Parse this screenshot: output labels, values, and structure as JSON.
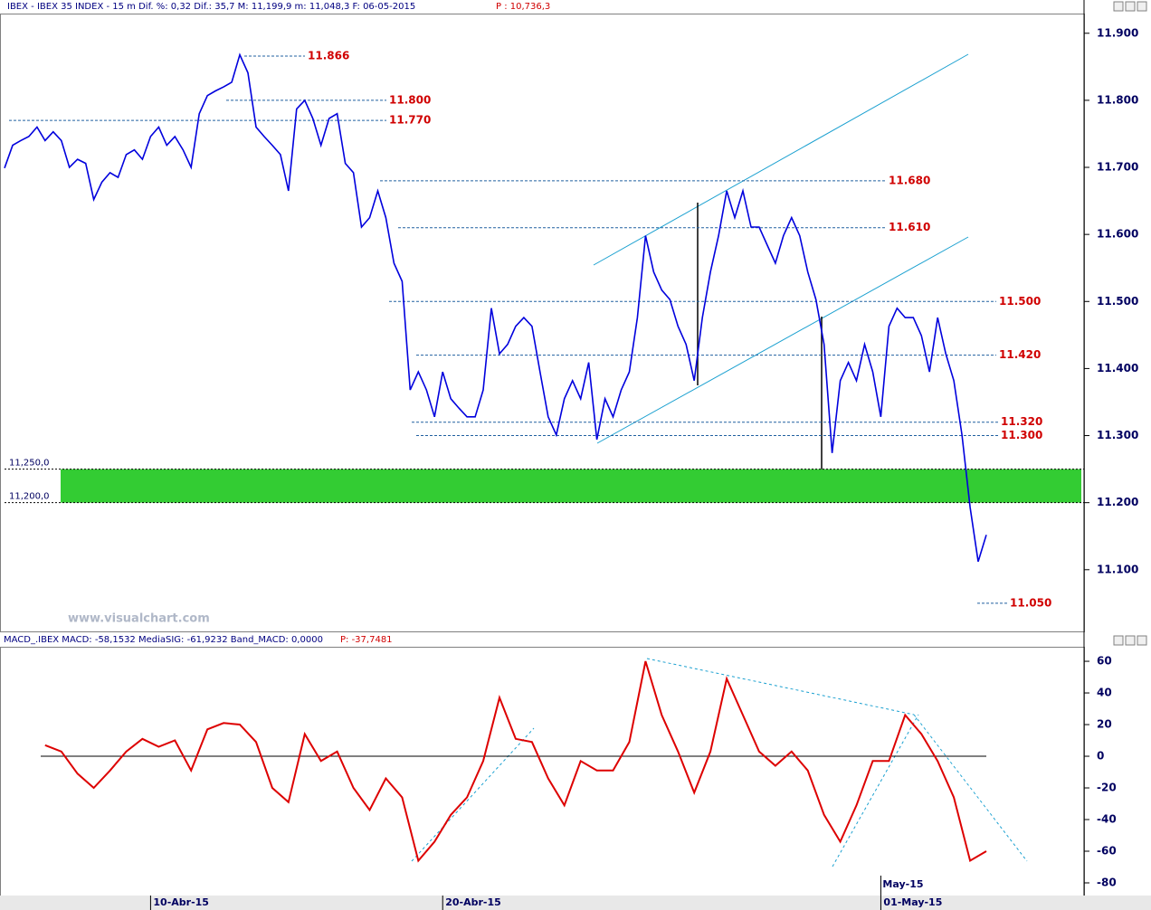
{
  "chart_data": [
    {
      "type": "line",
      "header": "IBEX - IBEX 35 INDEX -  15 m Dif. %: 0,32 Dif.: 35,7 M: 11,199,9 m: 11,048,3 F: 06-05-2015",
      "header_price": "P : 10,736,3",
      "watermark": "www.visualchart.com",
      "color": "#0000dd",
      "values": [
        11699,
        11733,
        11740,
        11746,
        11760,
        11740,
        11753,
        11740,
        11700,
        11712,
        11706,
        11652,
        11678,
        11692,
        11685,
        11719,
        11726,
        11712,
        11746,
        11760,
        11733,
        11746,
        11726,
        11700,
        11780,
        11807,
        11814,
        11820,
        11827,
        11868,
        11841,
        11760,
        11746,
        11733,
        11719,
        11665,
        11787,
        11800,
        11773,
        11733,
        11773,
        11780,
        11706,
        11692,
        11611,
        11625,
        11665,
        11625,
        11557,
        11530,
        11368,
        11395,
        11368,
        11328,
        11395,
        11355,
        11341,
        11328,
        11328,
        11368,
        11490,
        11422,
        11436,
        11463,
        11476,
        11463,
        11395,
        11328,
        11301,
        11355,
        11382,
        11355,
        11409,
        11294,
        11355,
        11328,
        11368,
        11395,
        11476,
        11598,
        11544,
        11517,
        11503,
        11463,
        11436,
        11382,
        11476,
        11544,
        11598,
        11665,
        11625,
        11665,
        11611,
        11611,
        11584,
        11557,
        11598,
        11625,
        11598,
        11544,
        11503,
        11436,
        11274,
        11382,
        11409,
        11382,
        11436,
        11395,
        11328,
        11463,
        11490,
        11476,
        11476,
        11449,
        11395,
        11476,
        11422,
        11382,
        11301,
        11193,
        11112,
        11152
      ],
      "ylim": [
        11008,
        11928
      ],
      "yticks": [
        {
          "value": 11100,
          "label": "11.100"
        },
        {
          "value": 11200,
          "label": "11.200"
        },
        {
          "value": 11300,
          "label": "11.300"
        },
        {
          "value": 11400,
          "label": "11.400"
        },
        {
          "value": 11500,
          "label": "11.500"
        },
        {
          "value": 11600,
          "label": "11.600"
        },
        {
          "value": 11700,
          "label": "11.700"
        },
        {
          "value": 11800,
          "label": "11.800"
        },
        {
          "value": 11900,
          "label": "11.900"
        }
      ],
      "xticks": [
        {
          "value": 18,
          "label": "10-Abr-15"
        },
        {
          "value": 54,
          "label": "20-Abr-15"
        },
        {
          "value": 108,
          "label": "01-May-15"
        }
      ],
      "levels": [
        {
          "value": 11866,
          "label": "11.866"
        },
        {
          "value": 11800,
          "label": "11.800"
        },
        {
          "value": 11770,
          "label": "11.770"
        },
        {
          "value": 11680,
          "label": "11.680"
        },
        {
          "value": 11610,
          "label": "11.610"
        },
        {
          "value": 11500,
          "label": "11.500"
        },
        {
          "value": 11420,
          "label": "11.420"
        },
        {
          "value": 11320,
          "label": "11.320"
        },
        {
          "value": 11300,
          "label": "11.300"
        },
        {
          "value": 11050,
          "label": "11.050"
        }
      ],
      "zone": {
        "from": {
          "value": 11200,
          "label": "11,200,0"
        },
        "to": {
          "value": 11250,
          "label": "11,250,0"
        },
        "color": "#33cc33"
      }
    },
    {
      "type": "line",
      "header": "MACD_.IBEX MACD: -58,1532 MediaSIG: -61,9232 Band_MACD: 0,0000",
      "header_price": "P: -37,7481",
      "color": "#dd0000",
      "x": [
        5,
        7,
        9,
        11,
        13,
        15,
        17,
        19,
        21,
        23,
        25,
        27,
        29,
        31,
        33,
        35,
        37,
        39,
        41,
        43,
        45,
        47,
        49,
        51,
        53,
        55,
        57,
        59,
        61,
        63,
        65,
        67,
        69,
        71,
        73,
        75,
        77,
        79,
        81,
        83,
        85,
        87,
        89,
        91,
        93,
        95,
        97,
        99,
        101,
        103,
        105,
        107,
        109,
        111,
        113,
        115,
        117,
        119,
        121
      ],
      "values": [
        7,
        3,
        -11,
        -20,
        -9,
        3,
        11,
        6,
        10,
        -9,
        17,
        21,
        20,
        9,
        -20,
        -29,
        14,
        -3,
        3,
        -20,
        -34,
        -14,
        -26,
        -66,
        -54,
        -37,
        -26,
        -3,
        37,
        11,
        9,
        -14,
        -31,
        -3,
        -9,
        -9,
        9,
        60,
        26,
        3,
        -23,
        3,
        49,
        26,
        3,
        -6,
        3,
        -9,
        -37,
        -54,
        -31,
        -3,
        -3,
        26,
        14,
        -3,
        -26,
        -66,
        -60
      ],
      "ylim": [
        -88,
        68.6
      ],
      "yticks": [
        -80,
        -60,
        -40,
        -20,
        0,
        20,
        40,
        60
      ],
      "xticks": [
        {
          "value": 108,
          "label": "May-15"
        }
      ]
    }
  ]
}
